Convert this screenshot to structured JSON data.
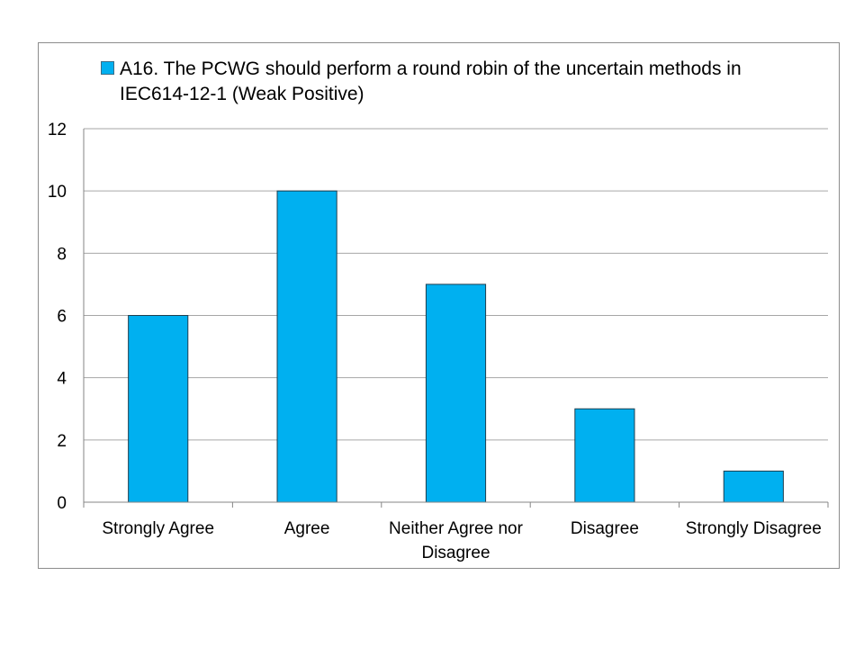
{
  "chart_data": {
    "type": "bar",
    "categories": [
      "Strongly Agree",
      "Agree",
      "Neither Agree nor Disagree",
      "Disagree",
      "Strongly Disagree"
    ],
    "category_lines": [
      [
        "Strongly Agree"
      ],
      [
        "Agree"
      ],
      [
        "Neither Agree nor",
        "Disagree"
      ],
      [
        "Disagree"
      ],
      [
        "Strongly Disagree"
      ]
    ],
    "series": [
      {
        "name": "A16. The PCWG should perform a round robin of the uncertain methods in IEC614-12-1 (Weak Positive)",
        "values": [
          6,
          10,
          7,
          3,
          1
        ]
      }
    ],
    "legend_lines": [
      "A16. The PCWG should perform a round robin of the uncertain methods in",
      "IEC614-12-1 (Weak Positive)"
    ],
    "y_ticks": [
      0,
      2,
      4,
      6,
      8,
      10,
      12
    ],
    "ylim": [
      0,
      12
    ],
    "grid": true,
    "legend_position": "top",
    "bar_color": "#00B0F0",
    "bar_edge_color": "#1f3f4f",
    "grid_color": "#a6a6a6",
    "axis_color": "#868686"
  }
}
